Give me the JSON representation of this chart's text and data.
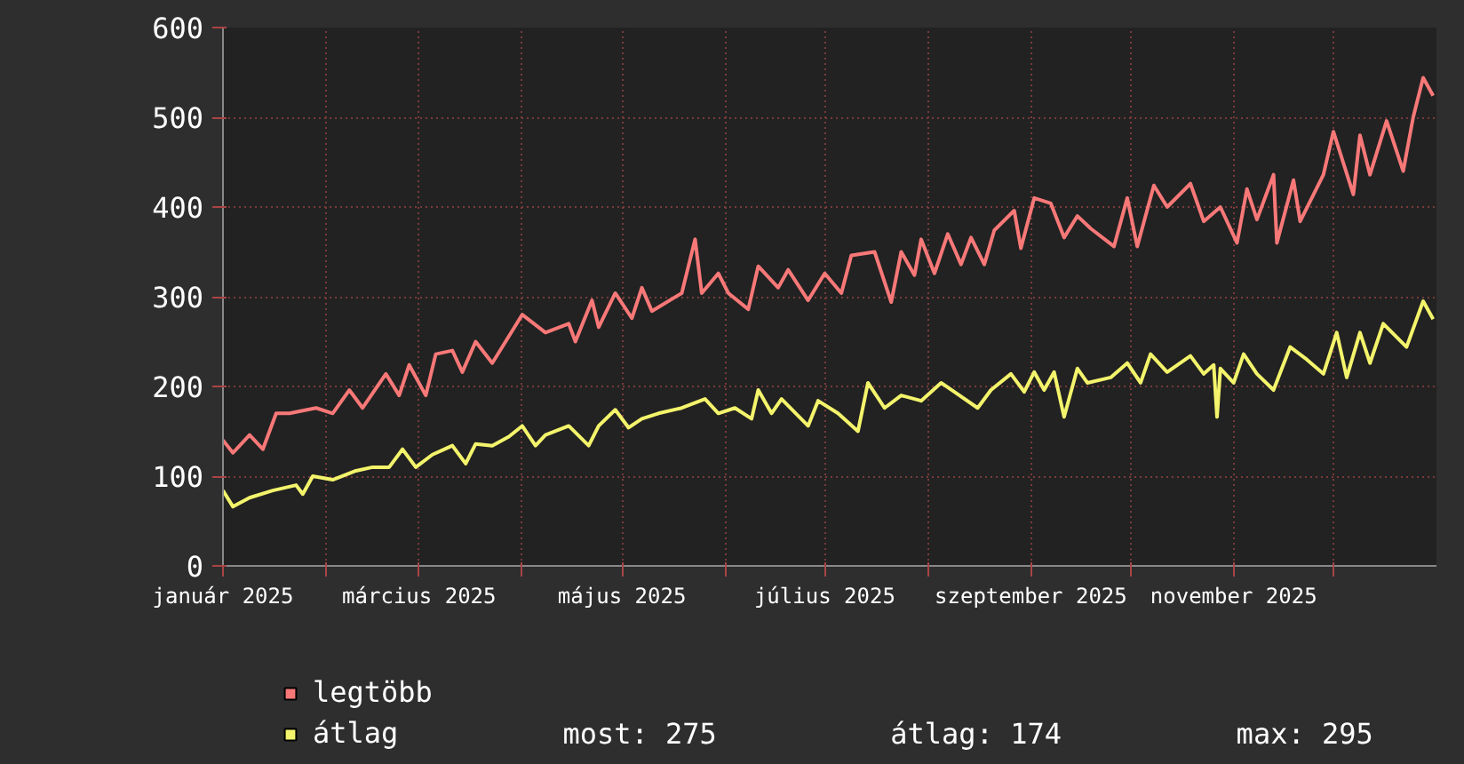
{
  "chart_data": {
    "type": "line",
    "xlim": [
      "2025-01-01",
      "2026-01-01"
    ],
    "xticks": [
      {
        "value": "2025-01-01",
        "label": "január 2025"
      },
      {
        "value": "2025-02-01",
        "label": null
      },
      {
        "value": "2025-03-01",
        "label": "március 2025"
      },
      {
        "value": "2025-04-01",
        "label": null
      },
      {
        "value": "2025-05-01",
        "label": "május 2025"
      },
      {
        "value": "2025-06-01",
        "label": null
      },
      {
        "value": "2025-07-01",
        "label": "július 2025"
      },
      {
        "value": "2025-08-01",
        "label": null
      },
      {
        "value": "2025-09-01",
        "label": "szeptember 2025"
      },
      {
        "value": "2025-10-01",
        "label": null
      },
      {
        "value": "2025-11-01",
        "label": "november 2025"
      },
      {
        "value": "2025-12-01",
        "label": null
      }
    ],
    "ylim": [
      0,
      600
    ],
    "yticks": [
      0,
      100,
      200,
      300,
      400,
      500,
      600
    ],
    "grid": true,
    "legend": "bottom",
    "line_style": "solid",
    "series": [
      {
        "name": "legtöbb",
        "color": "#f87878",
        "x": [
          "2025-01-01",
          "2025-01-04",
          "2025-01-09",
          "2025-01-13",
          "2025-01-17",
          "2025-01-21",
          "2025-01-29",
          "2025-02-03",
          "2025-02-08",
          "2025-02-12",
          "2025-02-19",
          "2025-02-23",
          "2025-02-26",
          "2025-03-03",
          "2025-03-06",
          "2025-03-11",
          "2025-03-14",
          "2025-03-18",
          "2025-03-23",
          "2025-03-28",
          "2025-04-01",
          "2025-04-08",
          "2025-04-15",
          "2025-04-17",
          "2025-04-22",
          "2025-04-24",
          "2025-04-29",
          "2025-05-04",
          "2025-05-07",
          "2025-05-10",
          "2025-05-19",
          "2025-05-23",
          "2025-05-25",
          "2025-05-30",
          "2025-06-02",
          "2025-06-08",
          "2025-06-11",
          "2025-06-17",
          "2025-06-20",
          "2025-06-26",
          "2025-07-01",
          "2025-07-06",
          "2025-07-09",
          "2025-07-16",
          "2025-07-21",
          "2025-07-24",
          "2025-07-28",
          "2025-07-30",
          "2025-08-03",
          "2025-08-07",
          "2025-08-11",
          "2025-08-14",
          "2025-08-18",
          "2025-08-21",
          "2025-08-27",
          "2025-08-29",
          "2025-09-02",
          "2025-09-07",
          "2025-09-11",
          "2025-09-15",
          "2025-09-19",
          "2025-09-26",
          "2025-09-30",
          "2025-10-03",
          "2025-10-08",
          "2025-10-12",
          "2025-10-19",
          "2025-10-23",
          "2025-10-28",
          "2025-11-02",
          "2025-11-05",
          "2025-11-08",
          "2025-11-13",
          "2025-11-14",
          "2025-11-19",
          "2025-11-21",
          "2025-11-28",
          "2025-12-01",
          "2025-12-07",
          "2025-12-09",
          "2025-12-12",
          "2025-12-17",
          "2025-12-22",
          "2025-12-25",
          "2025-12-28",
          "2025-12-31"
        ],
        "values": [
          140,
          126,
          146,
          130,
          170,
          170,
          176,
          170,
          196,
          176,
          214,
          190,
          224,
          190,
          236,
          240,
          216,
          250,
          226,
          256,
          280,
          260,
          270,
          250,
          296,
          266,
          304,
          276,
          310,
          284,
          304,
          364,
          304,
          326,
          304,
          286,
          334,
          310,
          330,
          296,
          326,
          304,
          346,
          350,
          294,
          350,
          324,
          364,
          326,
          370,
          336,
          366,
          336,
          374,
          396,
          354,
          410,
          404,
          366,
          390,
          376,
          356,
          410,
          356,
          424,
          400,
          426,
          384,
          400,
          360,
          420,
          386,
          436,
          360,
          430,
          384,
          436,
          484,
          414,
          480,
          436,
          496,
          440,
          500,
          544,
          524
        ]
      },
      {
        "name": "átlag",
        "color": "#f4f46c",
        "x": [
          "2025-01-01",
          "2025-01-04",
          "2025-01-09",
          "2025-01-16",
          "2025-01-23",
          "2025-01-25",
          "2025-01-28",
          "2025-02-03",
          "2025-02-10",
          "2025-02-15",
          "2025-02-20",
          "2025-02-24",
          "2025-02-28",
          "2025-03-05",
          "2025-03-11",
          "2025-03-15",
          "2025-03-18",
          "2025-03-23",
          "2025-03-28",
          "2025-04-01",
          "2025-04-05",
          "2025-04-08",
          "2025-04-15",
          "2025-04-21",
          "2025-04-24",
          "2025-04-29",
          "2025-05-03",
          "2025-05-07",
          "2025-05-12",
          "2025-05-19",
          "2025-05-26",
          "2025-05-30",
          "2025-06-04",
          "2025-06-09",
          "2025-06-11",
          "2025-06-15",
          "2025-06-18",
          "2025-06-26",
          "2025-06-29",
          "2025-07-05",
          "2025-07-11",
          "2025-07-14",
          "2025-07-19",
          "2025-07-24",
          "2025-07-30",
          "2025-08-05",
          "2025-08-09",
          "2025-08-16",
          "2025-08-20",
          "2025-08-26",
          "2025-08-30",
          "2025-09-02",
          "2025-09-05",
          "2025-09-08",
          "2025-09-11",
          "2025-09-15",
          "2025-09-18",
          "2025-09-25",
          "2025-09-30",
          "2025-10-04",
          "2025-10-07",
          "2025-10-12",
          "2025-10-19",
          "2025-10-23",
          "2025-10-26",
          "2025-10-27",
          "2025-10-28",
          "2025-11-01",
          "2025-11-04",
          "2025-11-08",
          "2025-11-13",
          "2025-11-18",
          "2025-11-23",
          "2025-11-28",
          "2025-12-02",
          "2025-12-05",
          "2025-12-09",
          "2025-12-12",
          "2025-12-16",
          "2025-12-23",
          "2025-12-28",
          "2025-12-31"
        ],
        "values": [
          84,
          66,
          76,
          84,
          90,
          80,
          100,
          96,
          106,
          110,
          110,
          130,
          110,
          124,
          134,
          114,
          136,
          134,
          144,
          156,
          134,
          146,
          156,
          134,
          156,
          174,
          154,
          164,
          170,
          176,
          186,
          170,
          176,
          164,
          196,
          170,
          186,
          156,
          184,
          170,
          150,
          204,
          176,
          190,
          184,
          204,
          194,
          176,
          196,
          214,
          194,
          216,
          196,
          216,
          166,
          220,
          204,
          210,
          226,
          204,
          236,
          216,
          234,
          214,
          224,
          166,
          220,
          204,
          236,
          214,
          196,
          244,
          230,
          214,
          260,
          210,
          260,
          226,
          270,
          244,
          295,
          275
        ]
      }
    ],
    "annotations": [
      "most: 275",
      "átlag: 174",
      "max: 295"
    ]
  }
}
